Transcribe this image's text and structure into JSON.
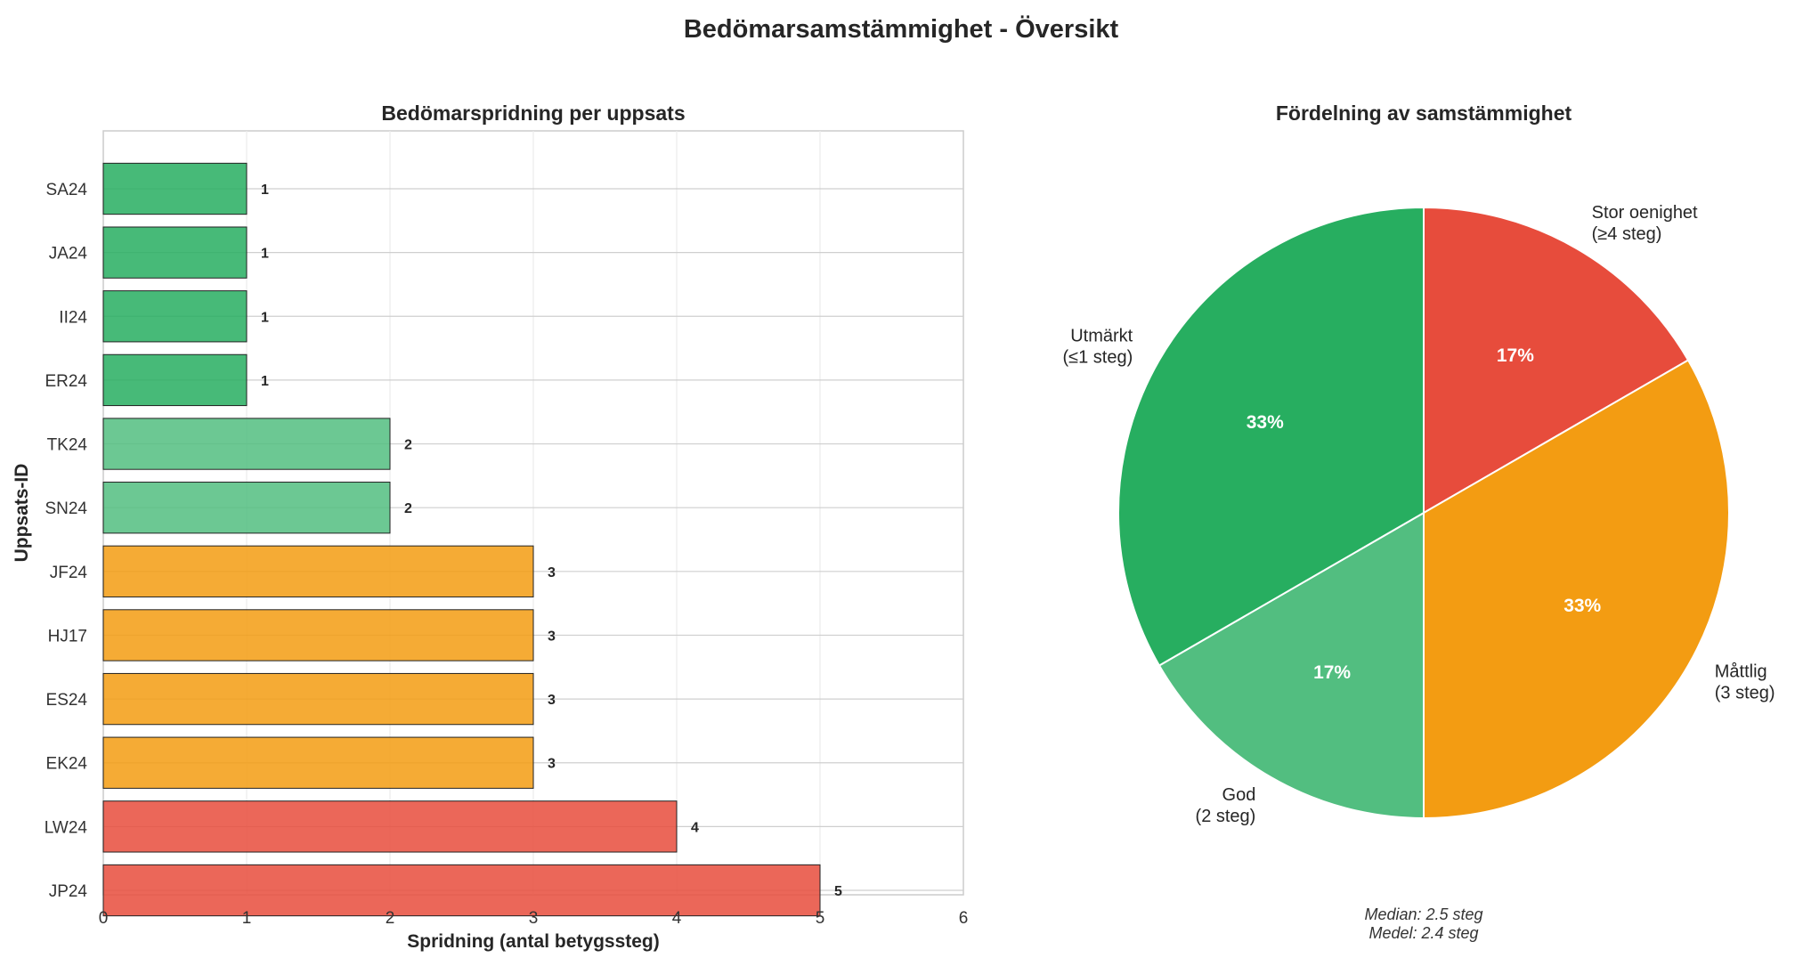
{
  "figure": {
    "title": "Bedömarsamstämmighet - Översikt"
  },
  "chart_data": [
    {
      "type": "bar",
      "orientation": "horizontal",
      "title": "Bedömarspridning per uppsats",
      "xlabel": "Spridning (antal betygssteg)",
      "ylabel": "Uppsats-ID",
      "xlim": [
        0,
        6
      ],
      "xticks": [
        0,
        1,
        2,
        3,
        4,
        5,
        6
      ],
      "grid": true,
      "categories": [
        "SA24",
        "JA24",
        "II24",
        "ER24",
        "TK24",
        "SN24",
        "JF24",
        "HJ17",
        "ES24",
        "EK24",
        "LW24",
        "JP24"
      ],
      "values": [
        1,
        1,
        1,
        1,
        2,
        2,
        3,
        3,
        3,
        3,
        4,
        5
      ],
      "colors": {
        "1": "#27ae60",
        "2": "#52be80",
        "3": "#f39c12",
        "4": "#e74c3c",
        "5": "#e74c3c"
      }
    },
    {
      "type": "pie",
      "title": "Fördelning av samstämmighet",
      "slices": [
        {
          "label_line1": "Stor oenighet",
          "label_line2": "(≥4 steg)",
          "value": 2,
          "pct": "17%",
          "color": "#e74c3c"
        },
        {
          "label_line1": "Måttlig",
          "label_line2": "(3 steg)",
          "value": 4,
          "pct": "33%",
          "color": "#f39c12"
        },
        {
          "label_line1": "God",
          "label_line2": "(2 steg)",
          "value": 2,
          "pct": "17%",
          "color": "#52be80"
        },
        {
          "label_line1": "Utmärkt",
          "label_line2": "(≤1 steg)",
          "value": 4,
          "pct": "33%",
          "color": "#27ae60"
        }
      ],
      "annotation_line1": "Median: 2.5 steg",
      "annotation_line2": "Medel: 2.4 steg"
    }
  ]
}
